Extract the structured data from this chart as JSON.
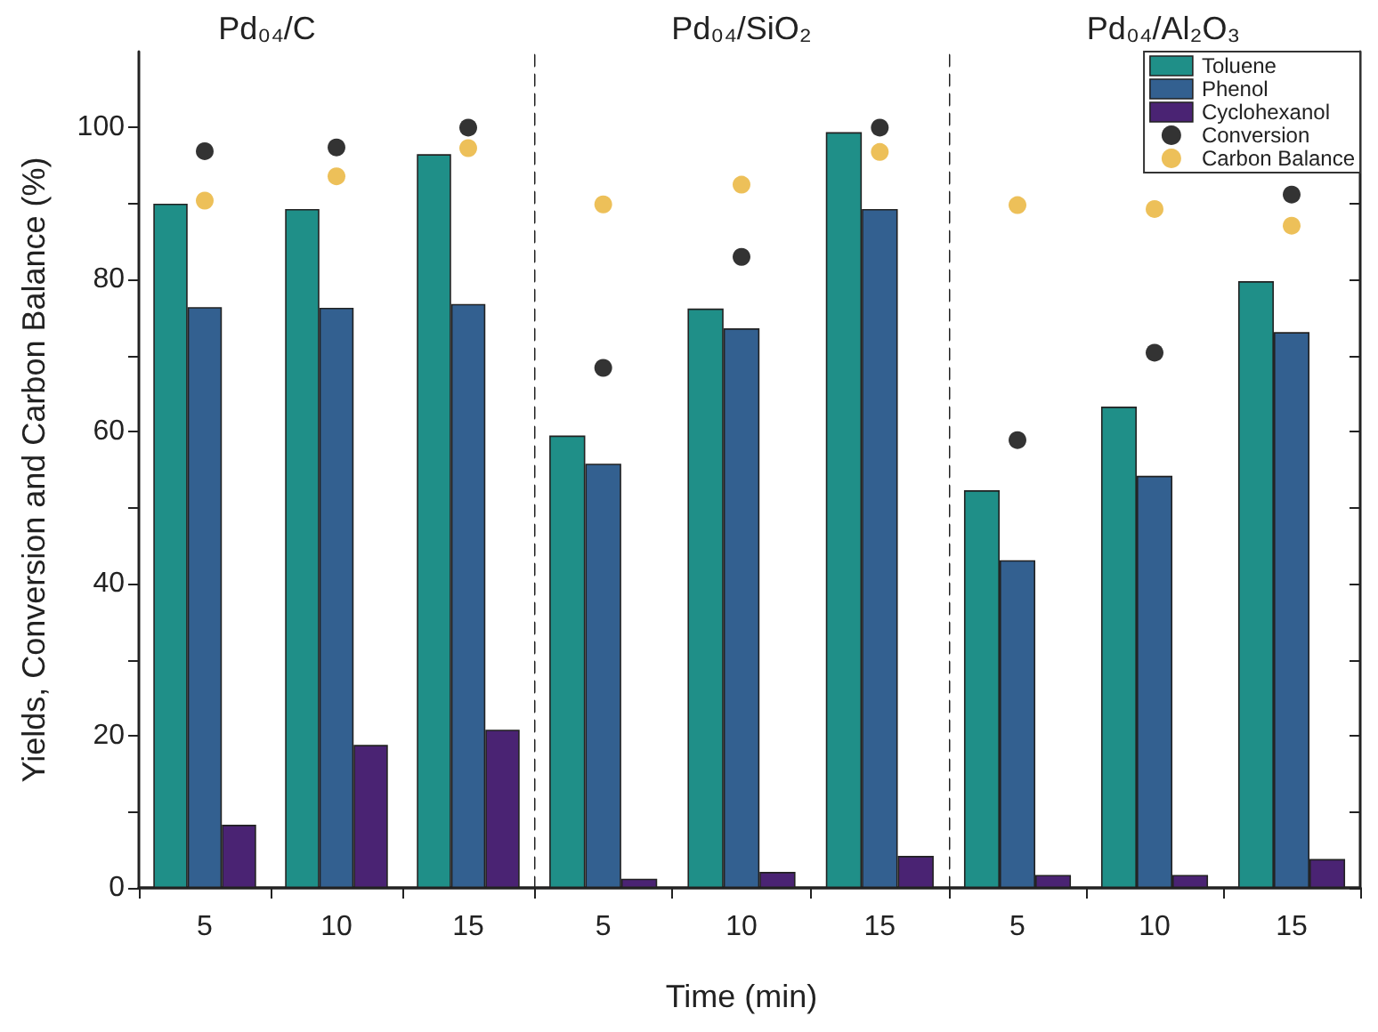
{
  "chart_data": [
    {
      "type": "bar",
      "title": "Pd₀₄/C",
      "ylabel": "Yields, Conversion and Carbon Balance (%)",
      "categories": [
        "5",
        "10",
        "15"
      ],
      "ylim": [
        0,
        110
      ],
      "yticks": [
        0,
        {
          "value": 10,
          "label": null
        },
        20,
        {
          "value": 30,
          "label": null
        },
        40,
        {
          "value": 50,
          "label": null
        },
        60,
        {
          "value": 70,
          "label": null
        },
        80,
        {
          "value": 90,
          "label": null
        },
        100
      ],
      "grid": false,
      "legend": false,
      "marker": "circle",
      "series": [
        {
          "color": "#1f8f88",
          "values": [
            90.0,
            89.3,
            96.5
          ]
        },
        {
          "color": "#336090",
          "values": [
            76.4,
            76.3,
            76.8
          ]
        },
        {
          "color": "#4a2373",
          "values": [
            8.3,
            18.8,
            20.8
          ]
        },
        {
          "type": "scatter",
          "color": "#000000",
          "x": [
            "5",
            "10",
            "15"
          ],
          "values": [
            96.9,
            97.4,
            100
          ]
        },
        {
          "type": "scatter",
          "color": "#e8b030",
          "x": [
            "5",
            "10",
            "15"
          ],
          "values": [
            90.4,
            93.6,
            97.3
          ]
        }
      ]
    },
    {
      "type": "bar",
      "title": "Pd₀₄/SiO₂",
      "xlabel": "Time (min)",
      "categories": [
        "5",
        "10",
        "15"
      ],
      "ylim": [
        0,
        110
      ],
      "grid": false,
      "legend": false,
      "marker": "circle",
      "tick_labels": "x",
      "series": [
        {
          "color": "#1f8f88",
          "values": [
            59.5,
            76.2,
            99.4
          ]
        },
        {
          "color": "#336090",
          "values": [
            55.8,
            73.6,
            89.3
          ]
        },
        {
          "color": "#4a2373",
          "values": [
            1.2,
            2.1,
            4.2
          ]
        },
        {
          "type": "scatter",
          "color": "#000000",
          "x": [
            "5",
            "10",
            "15"
          ],
          "values": [
            68.4,
            83.0,
            100
          ]
        },
        {
          "type": "scatter",
          "color": "#e8b030",
          "x": [
            "5",
            "10",
            "15"
          ],
          "values": [
            89.9,
            92.5,
            96.8
          ]
        }
      ]
    },
    {
      "type": "bar",
      "title": "Pd₀₄/Al₂O₃",
      "categories": [
        "5",
        "10",
        "15"
      ],
      "ylim": [
        0,
        110
      ],
      "yticks": [
        0,
        {
          "value": 10,
          "label": null
        },
        20,
        {
          "value": 30,
          "label": null
        },
        40,
        {
          "value": 50,
          "label": null
        },
        60,
        {
          "value": 70,
          "label": null
        },
        80,
        {
          "value": 90,
          "label": null
        },
        100
      ],
      "grid": false,
      "legend": "top right",
      "marker": "circle",
      "tick_labels": "x",
      "series": [
        {
          "name": "Toluene",
          "color": "#1f8f88",
          "values": [
            52.3,
            63.3,
            79.8
          ]
        },
        {
          "name": "Phenol",
          "color": "#336090",
          "values": [
            43.1,
            54.2,
            73.1
          ]
        },
        {
          "name": "Cyclohexanol",
          "color": "#4a2373",
          "values": [
            1.7,
            1.7,
            3.8
          ]
        },
        {
          "name": "Conversion",
          "type": "scatter",
          "color": "#000000",
          "x": [
            "5",
            "10",
            "15"
          ],
          "values": [
            58.9,
            70.4,
            91.2
          ]
        },
        {
          "name": "Carbon Balance",
          "type": "scatter",
          "color": "#e8b030",
          "x": [
            "5",
            "10",
            "15"
          ],
          "values": [
            89.8,
            89.3,
            87.1
          ]
        }
      ]
    }
  ]
}
